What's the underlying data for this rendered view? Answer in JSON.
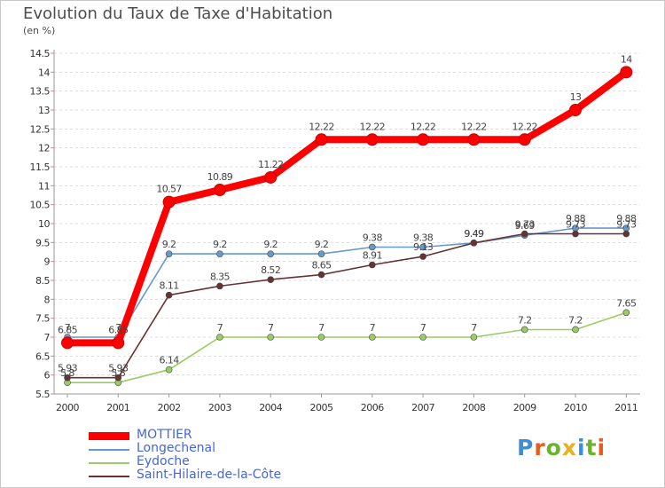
{
  "header": {
    "title": "Evolution du Taux de Taxe d'Habitation",
    "subtitle": "(en %)"
  },
  "brand": {
    "letters": [
      "P",
      "r",
      "o",
      "x",
      "i",
      "t",
      "i"
    ],
    "colors": [
      "#3a8fd8",
      "#e85a1e",
      "#6ab42d",
      "#e8b21e",
      "#3a8fd8",
      "#6ab42d",
      "#e85a1e"
    ]
  },
  "chart_data": {
    "type": "line",
    "title": "Evolution du Taux de Taxe d'Habitation",
    "ylabel": "(en %)",
    "xlabel": "",
    "ylim": [
      5.5,
      14.5
    ],
    "yticks": [
      "5.5",
      "6",
      "6.5",
      "7",
      "7.5",
      "8",
      "8.5",
      "9",
      "9.5",
      "10",
      "10.5",
      "11",
      "11.5",
      "12",
      "12.5",
      "13",
      "13.5",
      "14",
      "14.5"
    ],
    "x": [
      "2000",
      "2001",
      "2002",
      "2003",
      "2004",
      "2005",
      "2006",
      "2007",
      "2008",
      "2009",
      "2010",
      "2011"
    ],
    "legend_position": "bottom-left",
    "grid": "horizontal dashed",
    "series": [
      {
        "name": "Longechenal",
        "color": "#6699cc",
        "values": [
          7,
          7,
          9.2,
          9.2,
          9.2,
          9.2,
          9.38,
          9.38,
          9.49,
          9.69,
          9.88,
          9.88
        ],
        "labels": [
          "7",
          "7",
          "9.2",
          "9.2",
          "9.2",
          "9.2",
          "9.38",
          "9.38",
          "9.49",
          "9.69",
          "9.88",
          "9.88"
        ]
      },
      {
        "name": "Eydoche",
        "color": "#99cc66",
        "values": [
          5.8,
          5.8,
          6.14,
          7,
          7,
          7,
          7,
          7,
          7,
          7.2,
          7.2,
          7.65
        ],
        "labels": [
          "5.8",
          "5.8",
          "6.14",
          "7",
          "7",
          "7",
          "7",
          "7",
          "7",
          "7.2",
          "7.2",
          "7.65"
        ]
      },
      {
        "name": "Saint-Hilaire-de-la-Côte",
        "color": "#663333",
        "values": [
          5.93,
          5.93,
          8.11,
          8.35,
          8.52,
          8.65,
          8.91,
          9.13,
          9.49,
          9.73,
          9.73,
          9.73
        ],
        "labels": [
          "5.93",
          "5.93",
          "8.11",
          "8.35",
          "8.52",
          "8.65",
          "8.91",
          "9.13",
          "9.49",
          "9.73",
          "9.73",
          "9.73"
        ]
      },
      {
        "name": "MOTTIER",
        "color": "#ff0000",
        "values": [
          6.85,
          6.85,
          10.57,
          10.89,
          11.22,
          12.22,
          12.22,
          12.22,
          12.22,
          12.22,
          13,
          14
        ],
        "labels": [
          "6.85",
          "6.85",
          "10.57",
          "10.89",
          "11.22",
          "12.22",
          "12.22",
          "12.22",
          "12.22",
          "12.22",
          "13",
          "14"
        ]
      }
    ]
  },
  "legend": {
    "items": [
      {
        "label": "MOTTIER",
        "color": "#ff0000",
        "thick": true
      },
      {
        "label": "Longechenal",
        "color": "#6699cc",
        "thick": false
      },
      {
        "label": "Eydoche",
        "color": "#99cc66",
        "thick": false
      },
      {
        "label": "Saint-Hilaire-de-la-Côte",
        "color": "#663333",
        "thick": false
      }
    ]
  }
}
